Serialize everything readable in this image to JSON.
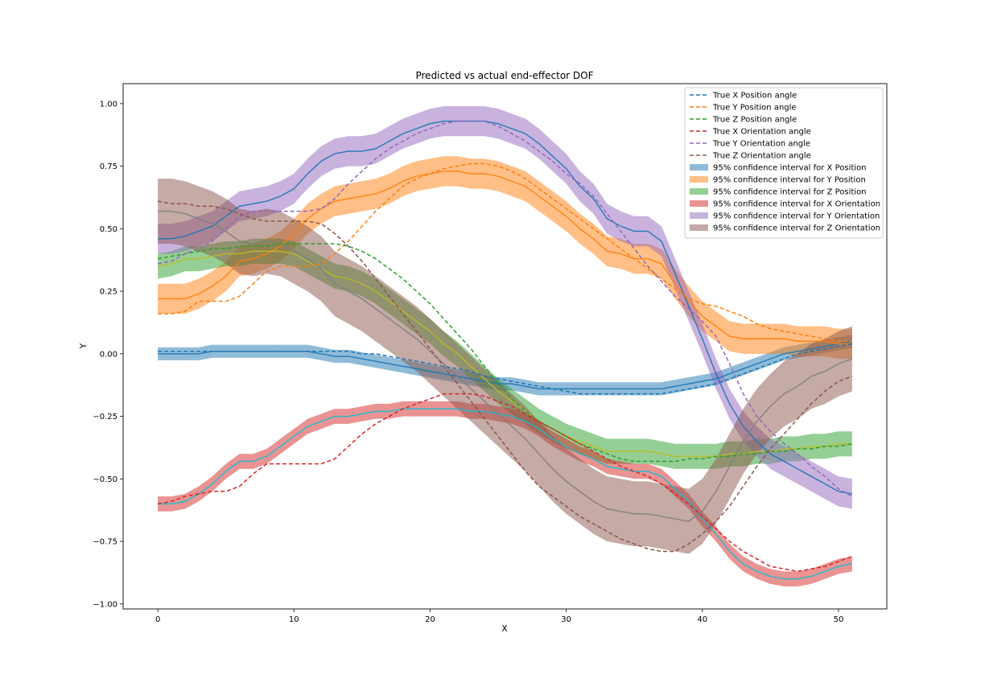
{
  "chart_data": {
    "type": "line",
    "title": "Predicted vs actual end-effector DOF",
    "xlabel": "X",
    "ylabel": "Y",
    "xlim": [
      -2.55,
      53.55
    ],
    "ylim": [
      -1.02,
      1.08
    ],
    "xticks": [
      0,
      10,
      20,
      30,
      40,
      50
    ],
    "yticks": [
      -1.0,
      -0.75,
      -0.5,
      -0.25,
      0.0,
      0.25,
      0.5,
      0.75,
      1.0
    ],
    "ytick_labels": [
      "−1.00",
      "−0.75",
      "−0.50",
      "−0.25",
      "0.00",
      "0.25",
      "0.50",
      "0.75",
      "1.00"
    ],
    "legend_position": "top-right",
    "grid": false,
    "x": [
      0,
      1,
      2,
      3,
      4,
      5,
      6,
      7,
      8,
      9,
      10,
      11,
      12,
      13,
      14,
      15,
      16,
      17,
      18,
      19,
      20,
      21,
      22,
      23,
      24,
      25,
      26,
      27,
      28,
      29,
      30,
      31,
      32,
      33,
      34,
      35,
      36,
      37,
      38,
      39,
      40,
      41,
      42,
      43,
      44,
      45,
      46,
      47,
      48,
      49,
      50,
      51
    ],
    "true_series": [
      {
        "name": "True X Position angle",
        "color": "#1f77b4",
        "values": [
          0.01,
          0.01,
          0.01,
          0.01,
          0.01,
          0.01,
          0.01,
          0.01,
          0.01,
          0.01,
          0.01,
          0.01,
          0.01,
          0.01,
          0.01,
          0.0,
          0.0,
          -0.01,
          -0.02,
          -0.03,
          -0.04,
          -0.05,
          -0.06,
          -0.07,
          -0.09,
          -0.1,
          -0.11,
          -0.12,
          -0.13,
          -0.14,
          -0.15,
          -0.16,
          -0.16,
          -0.16,
          -0.16,
          -0.16,
          -0.16,
          -0.16,
          -0.15,
          -0.14,
          -0.13,
          -0.12,
          -0.1,
          -0.08,
          -0.06,
          -0.04,
          -0.02,
          0.0,
          0.01,
          0.02,
          0.03,
          0.04
        ]
      },
      {
        "name": "True Y Position angle",
        "color": "#ff7f0e",
        "values": [
          0.16,
          0.16,
          0.17,
          0.21,
          0.21,
          0.21,
          0.23,
          0.28,
          0.33,
          0.35,
          0.35,
          0.35,
          0.36,
          0.4,
          0.45,
          0.51,
          0.57,
          0.62,
          0.67,
          0.7,
          0.72,
          0.74,
          0.75,
          0.76,
          0.76,
          0.75,
          0.73,
          0.7,
          0.66,
          0.62,
          0.58,
          0.54,
          0.5,
          0.46,
          0.42,
          0.38,
          0.34,
          0.3,
          0.26,
          0.22,
          0.2,
          0.19,
          0.17,
          0.15,
          0.12,
          0.1,
          0.09,
          0.08,
          0.07,
          0.06,
          0.05,
          0.05
        ]
      },
      {
        "name": "True Z Position angle",
        "color": "#2ca02c",
        "values": [
          0.38,
          0.39,
          0.4,
          0.41,
          0.42,
          0.42,
          0.43,
          0.43,
          0.43,
          0.44,
          0.44,
          0.44,
          0.44,
          0.44,
          0.43,
          0.41,
          0.38,
          0.34,
          0.3,
          0.25,
          0.2,
          0.14,
          0.08,
          0.02,
          -0.05,
          -0.12,
          -0.18,
          -0.23,
          -0.27,
          -0.3,
          -0.33,
          -0.36,
          -0.38,
          -0.4,
          -0.42,
          -0.43,
          -0.43,
          -0.43,
          -0.43,
          -0.42,
          -0.42,
          -0.41,
          -0.41,
          -0.4,
          -0.4,
          -0.39,
          -0.39,
          -0.38,
          -0.38,
          -0.37,
          -0.37,
          -0.36
        ]
      },
      {
        "name": "True X Orientation angle",
        "color": "#d62728",
        "values": [
          -0.6,
          -0.59,
          -0.57,
          -0.56,
          -0.55,
          -0.55,
          -0.53,
          -0.48,
          -0.44,
          -0.44,
          -0.44,
          -0.44,
          -0.44,
          -0.42,
          -0.37,
          -0.32,
          -0.28,
          -0.25,
          -0.22,
          -0.2,
          -0.18,
          -0.16,
          -0.16,
          -0.16,
          -0.17,
          -0.19,
          -0.21,
          -0.24,
          -0.27,
          -0.3,
          -0.33,
          -0.36,
          -0.39,
          -0.42,
          -0.45,
          -0.47,
          -0.49,
          -0.52,
          -0.56,
          -0.6,
          -0.65,
          -0.7,
          -0.75,
          -0.79,
          -0.82,
          -0.85,
          -0.86,
          -0.87,
          -0.86,
          -0.85,
          -0.83,
          -0.81
        ]
      },
      {
        "name": "True Y Orientation angle",
        "color": "#9467bd",
        "values": [
          0.36,
          0.37,
          0.4,
          0.42,
          0.45,
          0.5,
          0.55,
          0.57,
          0.57,
          0.57,
          0.57,
          0.57,
          0.58,
          0.62,
          0.68,
          0.73,
          0.78,
          0.82,
          0.85,
          0.88,
          0.9,
          0.92,
          0.93,
          0.93,
          0.93,
          0.91,
          0.88,
          0.85,
          0.81,
          0.77,
          0.72,
          0.68,
          0.63,
          0.56,
          0.49,
          0.42,
          0.35,
          0.29,
          0.23,
          0.18,
          0.13,
          0.07,
          -0.04,
          -0.16,
          -0.25,
          -0.31,
          -0.36,
          -0.4,
          -0.45,
          -0.49,
          -0.54,
          -0.57
        ]
      },
      {
        "name": "True Z Orientation angle",
        "color": "#8c564b",
        "values": [
          0.61,
          0.6,
          0.6,
          0.59,
          0.59,
          0.58,
          0.56,
          0.54,
          0.53,
          0.53,
          0.53,
          0.53,
          0.52,
          0.48,
          0.43,
          0.37,
          0.3,
          0.23,
          0.16,
          0.09,
          0.02,
          -0.05,
          -0.12,
          -0.19,
          -0.26,
          -0.33,
          -0.4,
          -0.47,
          -0.53,
          -0.57,
          -0.61,
          -0.65,
          -0.68,
          -0.71,
          -0.74,
          -0.76,
          -0.78,
          -0.79,
          -0.79,
          -0.76,
          -0.72,
          -0.67,
          -0.61,
          -0.53,
          -0.45,
          -0.38,
          -0.32,
          -0.26,
          -0.2,
          -0.15,
          -0.11,
          -0.09
        ]
      }
    ],
    "pred_series": [
      {
        "name": "95% confidence interval for X Position",
        "color": "#1f77b4",
        "halfwidth": 0.026,
        "values": [
          0.0,
          0.0,
          0.0,
          0.0,
          0.01,
          0.01,
          0.01,
          0.01,
          0.01,
          0.01,
          0.01,
          0.01,
          0.0,
          -0.01,
          -0.01,
          -0.02,
          -0.03,
          -0.04,
          -0.05,
          -0.06,
          -0.07,
          -0.08,
          -0.09,
          -0.1,
          -0.11,
          -0.12,
          -0.12,
          -0.13,
          -0.14,
          -0.14,
          -0.14,
          -0.14,
          -0.14,
          -0.14,
          -0.14,
          -0.14,
          -0.14,
          -0.14,
          -0.13,
          -0.12,
          -0.11,
          -0.1,
          -0.08,
          -0.06,
          -0.04,
          -0.02,
          0.0,
          0.01,
          0.02,
          0.03,
          0.04,
          0.05
        ]
      },
      {
        "name": "95% confidence interval for Y Position",
        "color": "#ff7f0e",
        "halfwidth": 0.06,
        "values": [
          0.22,
          0.22,
          0.22,
          0.24,
          0.27,
          0.31,
          0.37,
          0.38,
          0.4,
          0.43,
          0.48,
          0.54,
          0.58,
          0.61,
          0.62,
          0.63,
          0.64,
          0.66,
          0.69,
          0.71,
          0.72,
          0.73,
          0.73,
          0.72,
          0.72,
          0.71,
          0.69,
          0.67,
          0.63,
          0.59,
          0.55,
          0.5,
          0.46,
          0.41,
          0.4,
          0.38,
          0.38,
          0.36,
          0.28,
          0.21,
          0.15,
          0.11,
          0.07,
          0.06,
          0.06,
          0.06,
          0.06,
          0.05,
          0.05,
          0.05,
          0.04,
          0.04
        ]
      },
      {
        "name": "95% confidence interval for Z Position",
        "color": "#2ca02c",
        "halfwidth": 0.05,
        "values": [
          0.35,
          0.36,
          0.38,
          0.38,
          0.39,
          0.4,
          0.4,
          0.41,
          0.41,
          0.41,
          0.4,
          0.37,
          0.34,
          0.31,
          0.3,
          0.28,
          0.25,
          0.21,
          0.17,
          0.13,
          0.09,
          0.04,
          0.0,
          -0.05,
          -0.1,
          -0.15,
          -0.19,
          -0.23,
          -0.27,
          -0.3,
          -0.33,
          -0.35,
          -0.37,
          -0.39,
          -0.39,
          -0.39,
          -0.39,
          -0.4,
          -0.41,
          -0.41,
          -0.41,
          -0.41,
          -0.4,
          -0.4,
          -0.39,
          -0.39,
          -0.38,
          -0.38,
          -0.37,
          -0.37,
          -0.36,
          -0.36
        ]
      },
      {
        "name": "95% confidence interval for X Orientation",
        "color": "#d62728",
        "halfwidth": 0.03,
        "values": [
          -0.6,
          -0.6,
          -0.59,
          -0.56,
          -0.52,
          -0.47,
          -0.43,
          -0.43,
          -0.41,
          -0.37,
          -0.33,
          -0.29,
          -0.27,
          -0.25,
          -0.25,
          -0.24,
          -0.23,
          -0.23,
          -0.22,
          -0.22,
          -0.22,
          -0.22,
          -0.22,
          -0.23,
          -0.23,
          -0.24,
          -0.25,
          -0.27,
          -0.3,
          -0.34,
          -0.37,
          -0.4,
          -0.42,
          -0.45,
          -0.46,
          -0.47,
          -0.47,
          -0.49,
          -0.54,
          -0.59,
          -0.66,
          -0.72,
          -0.79,
          -0.84,
          -0.87,
          -0.89,
          -0.9,
          -0.9,
          -0.89,
          -0.87,
          -0.85,
          -0.84
        ]
      },
      {
        "name": "95% confidence interval for Y Orientation",
        "color": "#9467bd",
        "halfwidth": 0.06,
        "values": [
          0.46,
          0.46,
          0.47,
          0.49,
          0.51,
          0.55,
          0.59,
          0.6,
          0.61,
          0.63,
          0.66,
          0.72,
          0.77,
          0.8,
          0.81,
          0.81,
          0.82,
          0.85,
          0.88,
          0.9,
          0.92,
          0.93,
          0.93,
          0.93,
          0.93,
          0.92,
          0.9,
          0.88,
          0.84,
          0.79,
          0.74,
          0.67,
          0.62,
          0.54,
          0.51,
          0.49,
          0.49,
          0.45,
          0.32,
          0.19,
          0.06,
          -0.08,
          -0.2,
          -0.29,
          -0.35,
          -0.4,
          -0.43,
          -0.46,
          -0.49,
          -0.52,
          -0.55,
          -0.56
        ]
      },
      {
        "name": "95% confidence interval for Z Orientation",
        "color": "#8c564b",
        "halfwidth": 0.13,
        "values": [
          0.57,
          0.57,
          0.56,
          0.54,
          0.52,
          0.49,
          0.45,
          0.44,
          0.45,
          0.44,
          0.41,
          0.38,
          0.34,
          0.28,
          0.25,
          0.22,
          0.18,
          0.14,
          0.1,
          0.06,
          0.01,
          -0.04,
          -0.09,
          -0.14,
          -0.19,
          -0.24,
          -0.29,
          -0.34,
          -0.4,
          -0.46,
          -0.51,
          -0.55,
          -0.59,
          -0.62,
          -0.63,
          -0.64,
          -0.64,
          -0.65,
          -0.66,
          -0.67,
          -0.63,
          -0.55,
          -0.45,
          -0.35,
          -0.27,
          -0.21,
          -0.16,
          -0.13,
          -0.09,
          -0.07,
          -0.04,
          -0.02
        ]
      }
    ]
  }
}
